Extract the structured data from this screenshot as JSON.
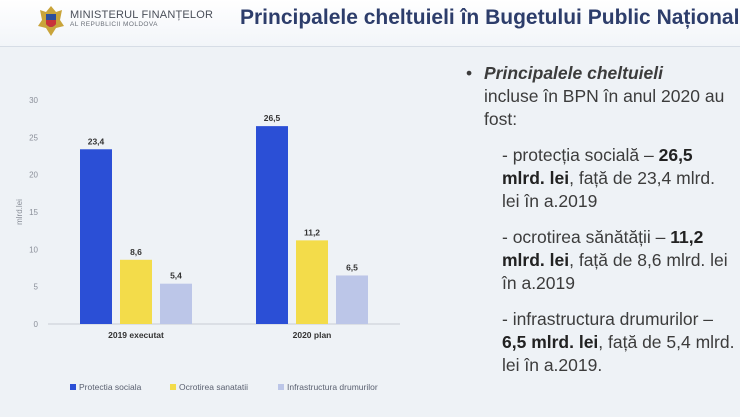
{
  "header": {
    "ministry_line1": "MINISTERUL FINANȚELOR",
    "ministry_line2": "AL REPUBLICII MOLDOVA",
    "title": "Principalele cheltuieli în Bugetului Public Național"
  },
  "colors": {
    "title": "#2d3d6b",
    "protectia": "#2b4fd6",
    "ocrotirea": "#f3dc4a",
    "infrastructura": "#bcc6e8"
  },
  "chart_data": {
    "type": "bar",
    "categories": [
      "2019 executat",
      "2020 plan"
    ],
    "series": [
      {
        "name": "Protectia sociala",
        "values": [
          23.4,
          26.5
        ],
        "labels": [
          "23,4",
          "26,5"
        ],
        "color": "#2b4fd6"
      },
      {
        "name": "Ocrotirea sanatatii",
        "values": [
          8.6,
          11.2
        ],
        "labels": [
          "8,6",
          "11,2"
        ],
        "color": "#f3dc4a"
      },
      {
        "name": "Infrastructura drumurilor",
        "values": [
          5.4,
          6.5
        ],
        "labels": [
          "5,4",
          "6,5"
        ],
        "color": "#bcc6e8"
      }
    ],
    "ylabel": "mlrd.lei",
    "ylim": [
      0,
      30
    ],
    "yticks": [
      0,
      5,
      10,
      15,
      20,
      25,
      30
    ],
    "grid": false,
    "legend_position": "bottom"
  },
  "text_panel": {
    "bullet": "•",
    "lead": "Principalele cheltuieli",
    "lead_rest": "incluse în BPN în anul 2020 au fost:",
    "items": [
      {
        "prefix": "- protecția socială – ",
        "value": "26,5 mlrd. lei",
        "suffix": ", față de 23,4 mlrd. lei în a.2019"
      },
      {
        "prefix": "- ocrotirea sănătății – ",
        "value": "11,2 mlrd. lei",
        "suffix": ",  față de 8,6 mlrd. lei în a.2019"
      },
      {
        "prefix": "- infrastructura drumurilor – ",
        "value": "6,5 mlrd. lei",
        "suffix": ", față de 5,4 mlrd. lei în a.2019."
      }
    ]
  }
}
